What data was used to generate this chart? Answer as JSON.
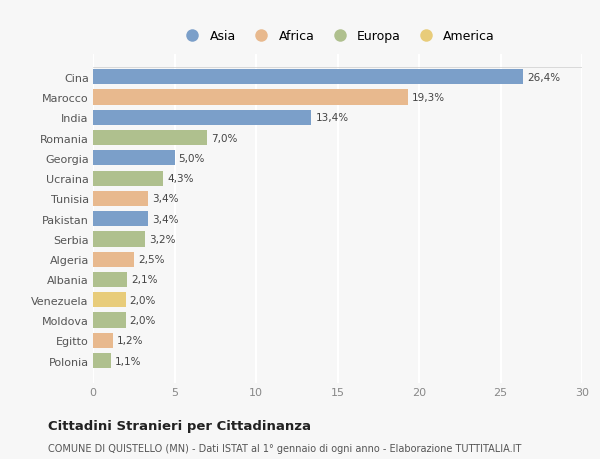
{
  "countries": [
    "Cina",
    "Marocco",
    "India",
    "Romania",
    "Georgia",
    "Ucraina",
    "Tunisia",
    "Pakistan",
    "Serbia",
    "Algeria",
    "Albania",
    "Venezuela",
    "Moldova",
    "Egitto",
    "Polonia"
  ],
  "values": [
    26.4,
    19.3,
    13.4,
    7.0,
    5.0,
    4.3,
    3.4,
    3.4,
    3.2,
    2.5,
    2.1,
    2.0,
    2.0,
    1.2,
    1.1
  ],
  "labels": [
    "26,4%",
    "19,3%",
    "13,4%",
    "7,0%",
    "5,0%",
    "4,3%",
    "3,4%",
    "3,4%",
    "3,2%",
    "2,5%",
    "2,1%",
    "2,0%",
    "2,0%",
    "1,2%",
    "1,1%"
  ],
  "colors": [
    "#7b9fc9",
    "#e8b98e",
    "#7b9fc9",
    "#afc08e",
    "#7b9fc9",
    "#afc08e",
    "#e8b98e",
    "#7b9fc9",
    "#afc08e",
    "#e8b98e",
    "#afc08e",
    "#e8cc7a",
    "#afc08e",
    "#e8b98e",
    "#afc08e"
  ],
  "legend_labels": [
    "Asia",
    "Africa",
    "Europa",
    "America"
  ],
  "legend_colors": [
    "#7b9fc9",
    "#e8b98e",
    "#afc08e",
    "#e8cc7a"
  ],
  "xlim": [
    0,
    30
  ],
  "xticks": [
    0,
    5,
    10,
    15,
    20,
    25,
    30
  ],
  "title": "Cittadini Stranieri per Cittadinanza",
  "subtitle": "COMUNE DI QUISTELLO (MN) - Dati ISTAT al 1° gennaio di ogni anno - Elaborazione TUTTITALIA.IT",
  "background_color": "#f7f7f7",
  "bar_height": 0.75
}
